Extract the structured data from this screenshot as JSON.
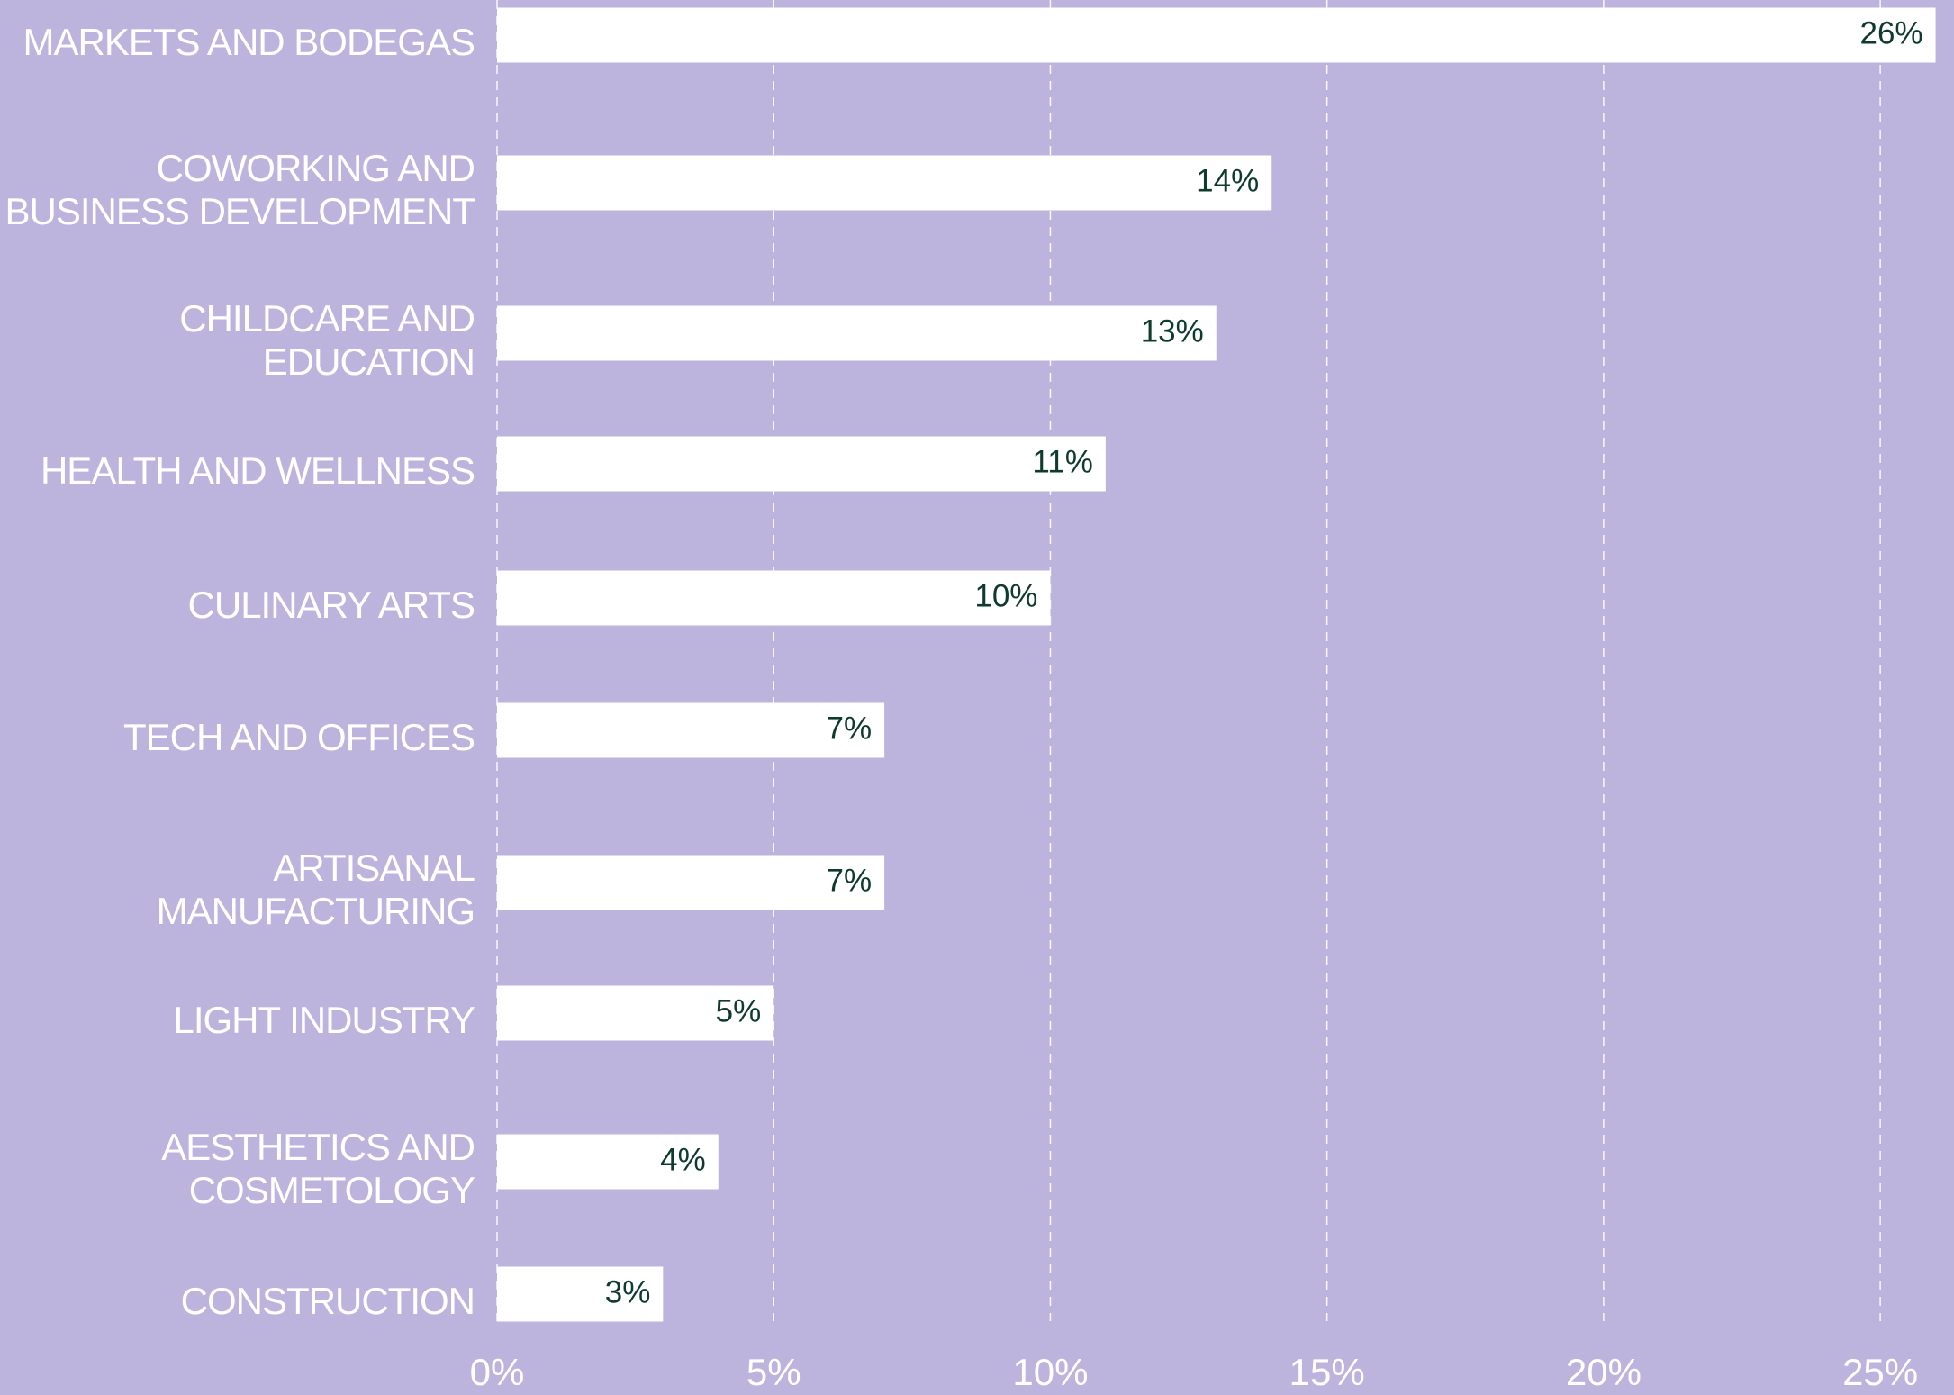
{
  "chart_data": {
    "type": "barh",
    "categories": [
      "MARKETS AND BODEGAS",
      "COWORKING AND\nBUSINESS DEVELOPMENT",
      "CHILDCARE AND\nEDUCATION",
      "HEALTH AND WELLNESS",
      "CULINARY ARTS",
      "TECH AND OFFICES",
      "ARTISANAL\nMANUFACTURING",
      "LIGHT INDUSTRY",
      "AESTHETICS AND\nCOSMETOLOGY",
      "CONSTRUCTION"
    ],
    "values": [
      26,
      14,
      13,
      11,
      10,
      7,
      7,
      5,
      4,
      3
    ],
    "value_labels": [
      "26%",
      "14%",
      "13%",
      "11%",
      "10%",
      "7%",
      "7%",
      "5%",
      "4%",
      "3%"
    ],
    "color": "#ffffff",
    "xlim": [
      0,
      26.3
    ],
    "xticks": [
      {
        "value": 0,
        "label": "0%"
      },
      {
        "value": 5,
        "label": "5%"
      },
      {
        "value": 10,
        "label": "10%"
      },
      {
        "value": 15,
        "label": "15%"
      },
      {
        "value": 20,
        "label": "20%"
      },
      {
        "value": 25,
        "label": "25%"
      }
    ],
    "grid": true
  }
}
